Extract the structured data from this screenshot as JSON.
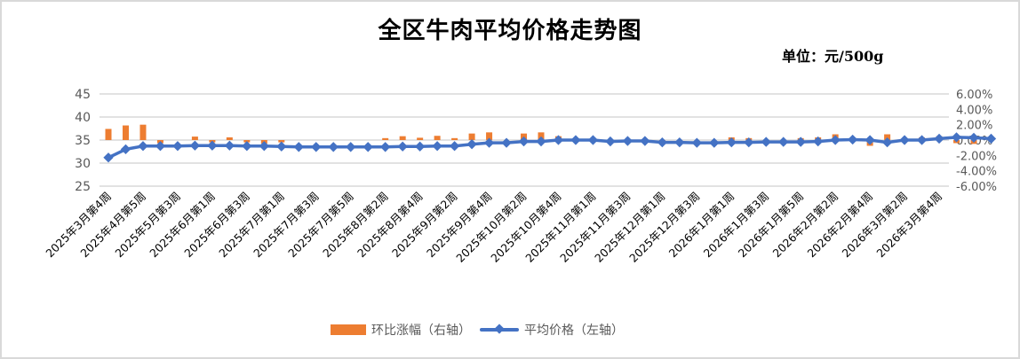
{
  "title": "全区牛肉平均价格走势图",
  "unit": "单位：元/500g",
  "legend": {
    "bar_label": "环比涨幅（右轴）",
    "line_label": "平均价格（左轴）"
  },
  "colors": {
    "bar": "#ed7d31",
    "line": "#4472c4",
    "grid": "#d9d9d9"
  },
  "chart_data": {
    "type": "bar+line",
    "title": "全区牛肉平均价格走势图",
    "subtitle": "单位：元/500g",
    "y_left": {
      "label": "平均价格（左轴）",
      "range": [
        25,
        45
      ],
      "ticks": [
        "25",
        "30",
        "35",
        "40",
        "45"
      ]
    },
    "y_right": {
      "label": "环比涨幅（右轴）",
      "range": [
        -6,
        6
      ],
      "ticks": [
        "-6.00%",
        "-4.00%",
        "-2.00%",
        "0.00%",
        "2.00%",
        "4.00%",
        "6.00%"
      ]
    },
    "x_tick_labels": [
      "2025年3月第4周",
      "2025年4月第5周",
      "2025年5月第3周",
      "2025年6月第1周",
      "2025年6月第3周",
      "2025年7月第1周",
      "2025年7月第3周",
      "2025年7月第5周",
      "2025年8月第2周",
      "2025年8月第4周",
      "2025年9月第2周",
      "2025年9月第4周",
      "2025年10月第2周",
      "2025年10月第4周",
      "2025年11月第1周",
      "2025年11月第3周",
      "2025年12月第1周",
      "2025年12月第3周",
      "2026年1月第1周",
      "2026年1月第3周",
      "2026年1月第5周",
      "2026年2月第2周",
      "2026年2月第4周",
      "2026年3月第2周",
      "2026年3月第4周"
    ],
    "grid": true,
    "legend_position": "bottom",
    "series": [
      {
        "name": "平均价格（左轴）",
        "type": "line",
        "axis": "left",
        "values": [
          31.2,
          33.0,
          33.7,
          33.7,
          33.7,
          33.8,
          33.8,
          33.8,
          33.7,
          33.7,
          33.6,
          33.5,
          33.5,
          33.5,
          33.5,
          33.5,
          33.5,
          33.6,
          33.6,
          33.7,
          33.7,
          34.1,
          34.4,
          34.4,
          34.7,
          34.7,
          35.0,
          35.0,
          35.0,
          34.7,
          34.8,
          34.8,
          34.5,
          34.5,
          34.4,
          34.4,
          34.5,
          34.5,
          34.6,
          34.6,
          34.6,
          34.7,
          35.0,
          35.1,
          35.0,
          34.5,
          35.0,
          35.0,
          35.3,
          35.6,
          35.5,
          35.3
        ]
      },
      {
        "name": "环比涨幅（右轴）",
        "type": "bar",
        "axis": "right",
        "values": [
          1.45,
          1.9,
          2.0,
          -0.4,
          0.0,
          0.45,
          -0.3,
          0.35,
          -0.3,
          -0.45,
          -0.3,
          0.0,
          0.0,
          0.0,
          0.0,
          0.0,
          0.25,
          0.5,
          0.3,
          0.55,
          0.25,
          0.85,
          1.0,
          0.0,
          0.85,
          1.0,
          0.5,
          0.0,
          0.0,
          -0.35,
          0.0,
          0.0,
          -0.3,
          0.0,
          0.0,
          0.0,
          0.35,
          0.25,
          0.0,
          0.0,
          0.25,
          0.35,
          0.75,
          0.0,
          -0.75,
          0.75,
          0.0,
          0.35,
          0.5,
          -0.4,
          -0.5,
          0.0
        ]
      }
    ]
  }
}
